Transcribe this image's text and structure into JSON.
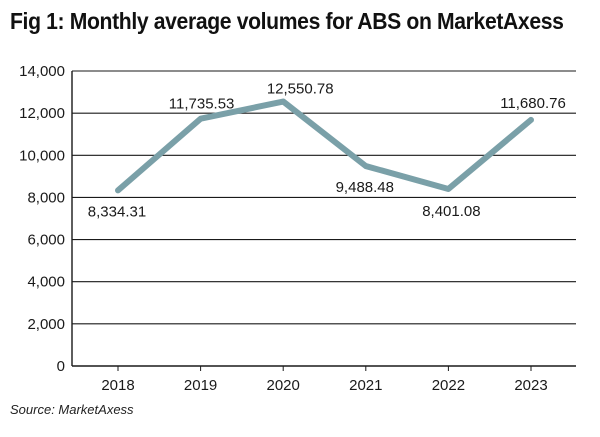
{
  "title": "Fig 1: Monthly average volumes for ABS on MarketAxess",
  "source": "Source: MarketAxess",
  "chart_data": {
    "type": "line",
    "title": "Fig 1: Monthly average volumes for ABS on MarketAxess",
    "xlabel": "",
    "ylabel": "",
    "categories": [
      "2018",
      "2019",
      "2020",
      "2021",
      "2022",
      "2023"
    ],
    "series": [
      {
        "values": [
          8334.31,
          11735.53,
          12550.78,
          9488.48,
          8401.08,
          11680.76
        ],
        "labels": [
          "8,334.31",
          "11,735.53",
          "12,550.78",
          "9,488.48",
          "8,401.08",
          "11,680.76"
        ],
        "color": "#7aa0a8"
      }
    ],
    "ylim": [
      0,
      14000
    ],
    "yticks": [
      0,
      2000,
      4000,
      6000,
      8000,
      10000,
      12000,
      14000
    ],
    "ytick_labels": [
      "0",
      "2,000",
      "4,000",
      "6,000",
      "8,000",
      "10,000",
      "12,000",
      "14,000"
    ],
    "grid": true,
    "legend": "none"
  }
}
